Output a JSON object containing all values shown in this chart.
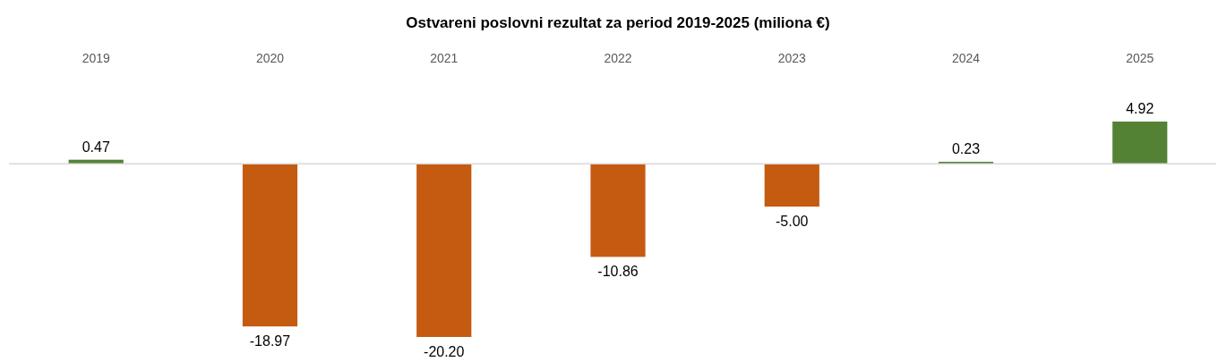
{
  "chart_data": {
    "type": "bar",
    "title": "Ostvareni poslovni  rezultat za period 2019-2025 (miliona €)",
    "categories": [
      "2019",
      "2020",
      "2021",
      "2022",
      "2023",
      "2024",
      "2025"
    ],
    "values": [
      0.47,
      -18.97,
      -20.2,
      -10.86,
      -5.0,
      0.23,
      4.92
    ],
    "colors": [
      "#548235",
      "#c55a11",
      "#c55a11",
      "#c55a11",
      "#c55a11",
      "#548235",
      "#548235"
    ],
    "value_labels": [
      "0.47",
      "-18.97",
      "-20.20",
      "-10.86",
      "-5.00",
      "0.23",
      "4.92"
    ]
  }
}
